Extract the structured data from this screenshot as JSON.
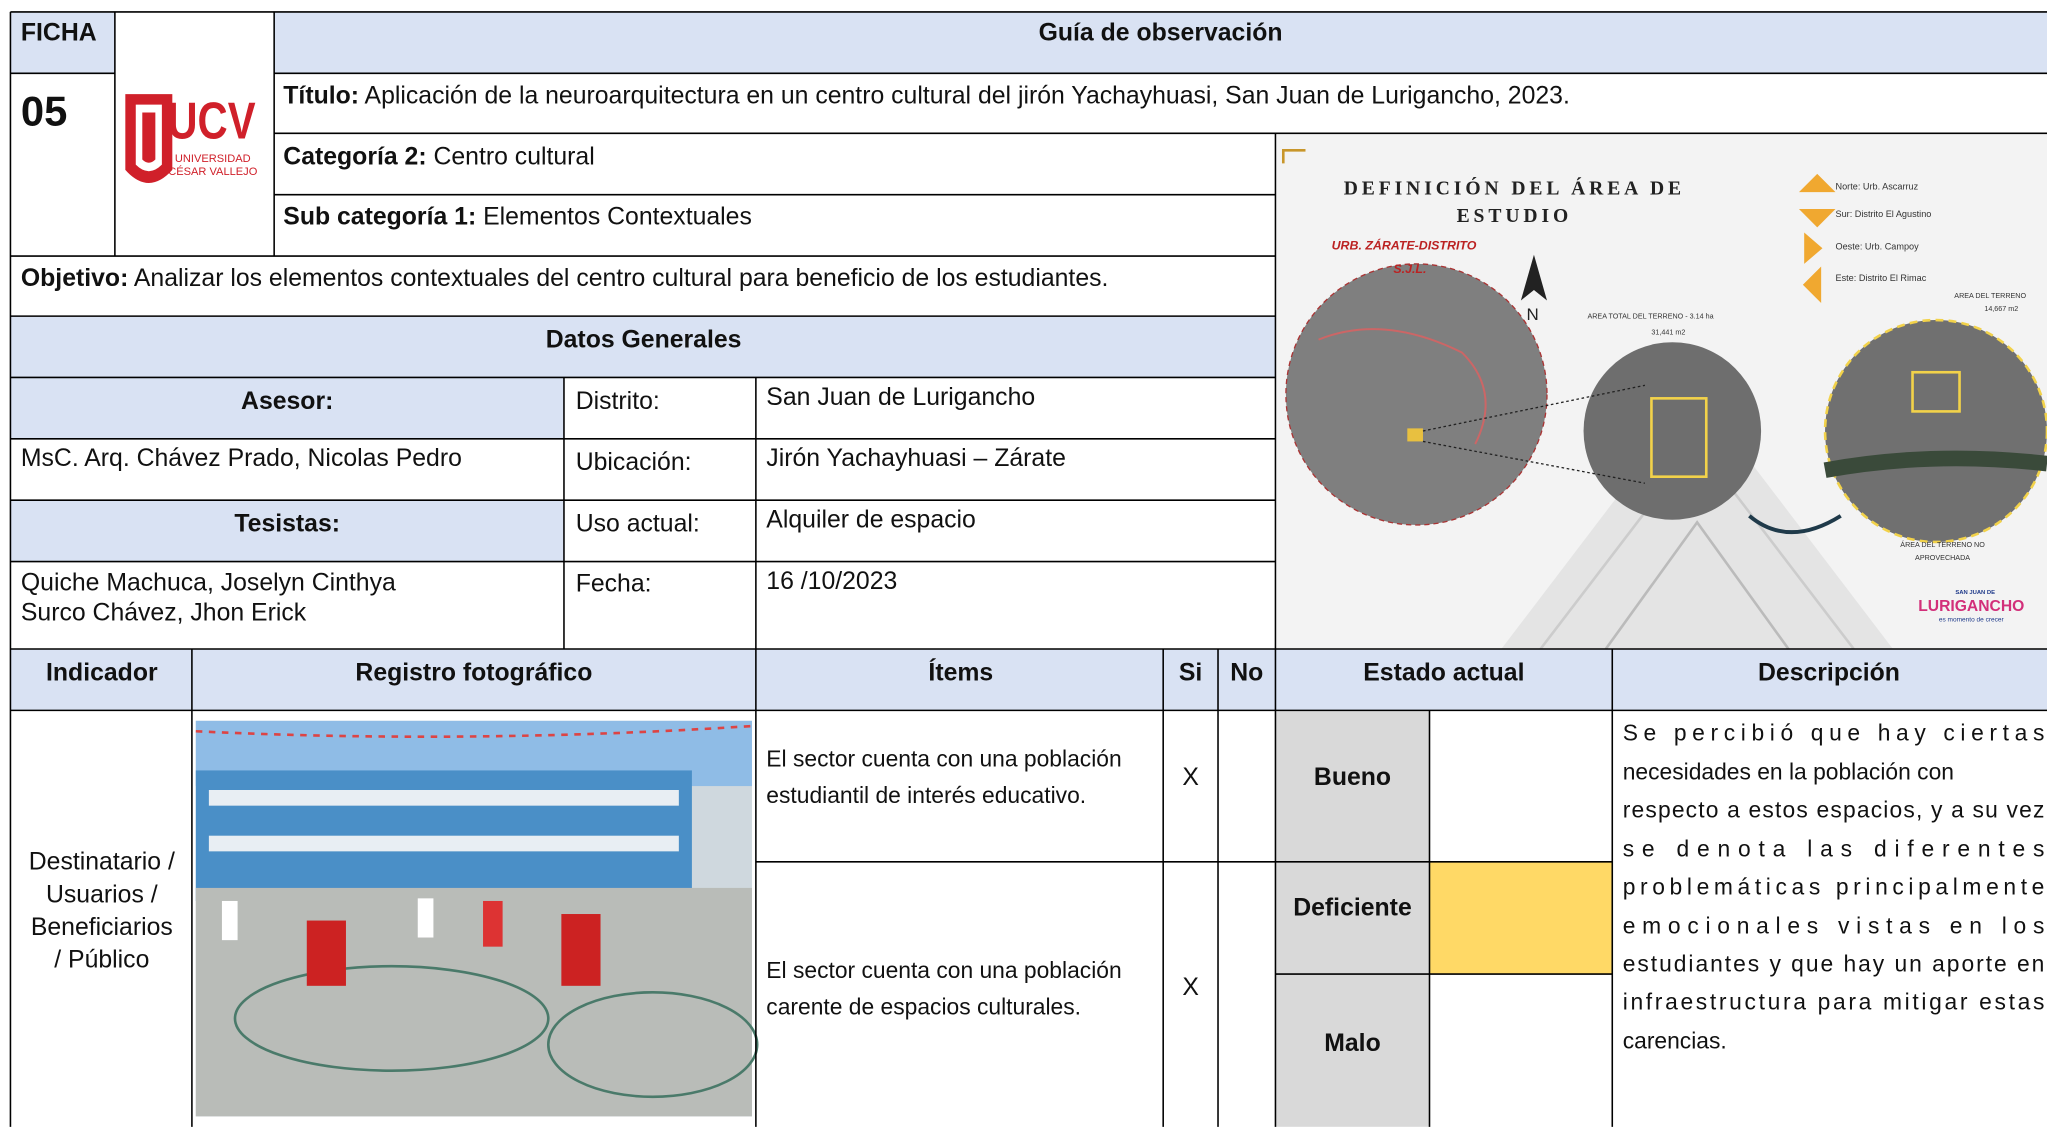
{
  "header": {
    "ficha": "FICHA",
    "number": "05",
    "logo": "UCV",
    "logo_sub": [
      "UNIVERSIDAD",
      "CÉSAR VALLEJO"
    ],
    "guide": "Guía de observación",
    "title_label": "Título:",
    "title": " Aplicación de la neuroarquitectura en un centro cultural del jirón Yachayhuasi, San Juan de Lurigancho, 2023.",
    "category_label": "Categoría 2:",
    "category": " Centro cultural",
    "subcategory_label": "Sub categoría 1:",
    "subcategory": " Elementos Contextuales",
    "objective_label": "Objetivo:",
    "objective": " Analizar los elementos contextuales del centro cultural para beneficio de los estudiantes."
  },
  "general": {
    "heading": "Datos Generales",
    "advisor_label": "Asesor:",
    "advisor": "MsC. Arq. Chávez Prado, Nicolas Pedro",
    "authors_label": "Tesistas:",
    "authors": [
      "Quiche Machuca, Joselyn Cinthya",
      "Surco Chávez, Jhon Erick"
    ],
    "fields": [
      {
        "label": "Distrito:",
        "value": "San Juan de Lurigancho"
      },
      {
        "label": "Ubicación:",
        "value": "Jirón Yachayhuasi – Zárate"
      },
      {
        "label": "Uso actual:",
        "value": "Alquiler de espacio"
      },
      {
        "label": "Fecha:",
        "value": "16 /10/2023"
      }
    ]
  },
  "map": {
    "title": [
      "DEFINICIÓN DEL ÁREA DE",
      "ESTUDIO"
    ],
    "place": [
      "URB. ZÁRATE-DISTRITO",
      "S.J.L."
    ],
    "north": "N",
    "legend": [
      "Norte: Urb. Ascarruz",
      "Sur: Distrito El Agustino",
      "Oeste: Urb. Campoy",
      "Este: Distrito El Rimac"
    ],
    "total_area": [
      "AREA TOTAL DEL TERRENO - 3.14 ha",
      "31,441 m2"
    ],
    "plot_area": [
      "AREA DEL TERRENO",
      "14,667 m2"
    ],
    "unused_area": [
      "ÁREA DEL TERRENO NO",
      "APROVECHADA"
    ],
    "brand": [
      "SAN JUAN DE",
      "LURIGANCHO",
      "es momento de crecer"
    ]
  },
  "table": {
    "headers": [
      "Indicador",
      "Registro fotográfico",
      "Ítems",
      "Si",
      "No",
      "Estado actual",
      "Descripción"
    ],
    "indicator": [
      "Destinatario /",
      "Usuarios /",
      "Beneficiarios",
      "/ Público"
    ],
    "items": [
      {
        "lines": [
          "El sector cuenta con una población",
          "estudiantil de interés educativo."
        ],
        "si": "X"
      },
      {
        "lines": [
          "El sector cuenta con una población",
          "carente de espacios culturales."
        ],
        "si": "X"
      }
    ],
    "states": [
      "Bueno",
      "Deficiente",
      "Malo"
    ],
    "description": [
      "Se percibió que hay ciertas",
      "necesidades en la población con",
      "respecto a estos espacios, y a su vez",
      "se denota las diferentes",
      "problemáticas principalmente",
      "emocionales vistas en los",
      "estudiantes y que hay un aporte en",
      "infraestructura para mitigar estas",
      "carencias."
    ]
  }
}
